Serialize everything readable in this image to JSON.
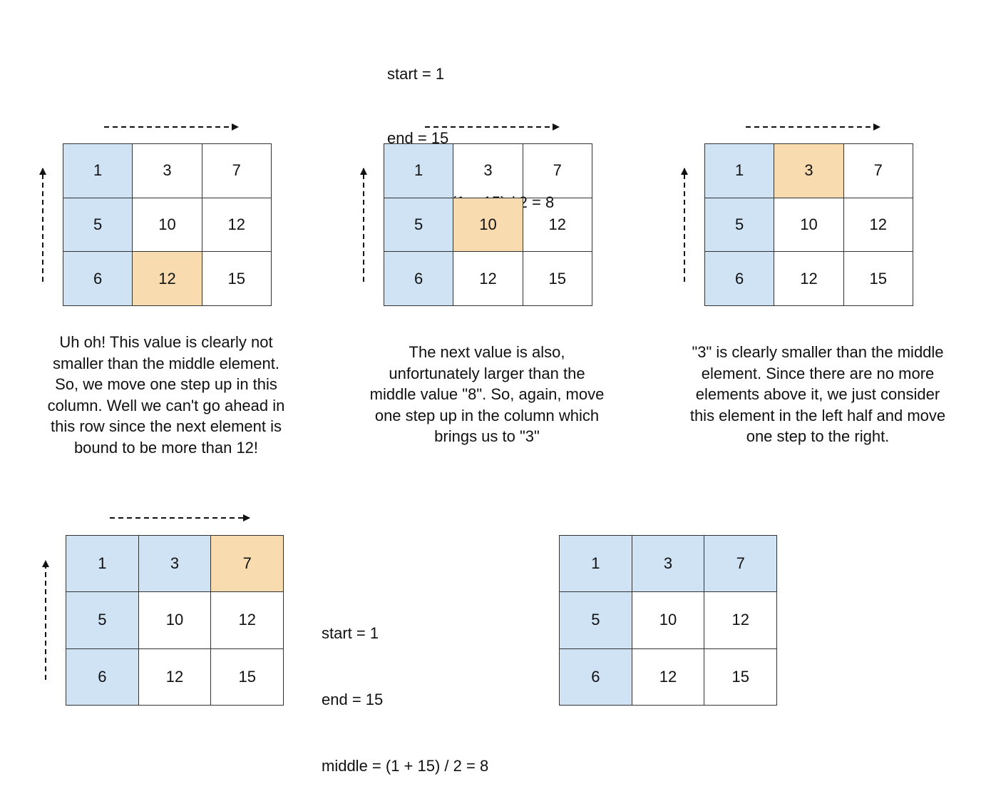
{
  "top_info": {
    "lines": [
      "start = 1",
      "end = 15",
      "middle = (1 + 15) / 2 = 8"
    ]
  },
  "mid_info": {
    "lines": [
      "start = 1",
      "end = 15",
      "middle = (1 + 15) / 2 = 8"
    ]
  },
  "colors": {
    "counted": "#cfe3f4",
    "current": "#f8dcaf",
    "border": "#333333"
  },
  "matrices": [
    {
      "rows": [
        [
          "1",
          "3",
          "7"
        ],
        [
          "5",
          "10",
          "12"
        ],
        [
          "6",
          "12",
          "15"
        ]
      ],
      "states": [
        [
          "in",
          "",
          ""
        ],
        [
          "in",
          "",
          ""
        ],
        [
          "in",
          "mark",
          ""
        ]
      ]
    },
    {
      "rows": [
        [
          "1",
          "3",
          "7"
        ],
        [
          "5",
          "10",
          "12"
        ],
        [
          "6",
          "12",
          "15"
        ]
      ],
      "states": [
        [
          "in",
          "",
          ""
        ],
        [
          "in",
          "mark",
          ""
        ],
        [
          "in",
          "",
          ""
        ]
      ]
    },
    {
      "rows": [
        [
          "1",
          "3",
          "7"
        ],
        [
          "5",
          "10",
          "12"
        ],
        [
          "6",
          "12",
          "15"
        ]
      ],
      "states": [
        [
          "in",
          "mark",
          ""
        ],
        [
          "in",
          "",
          ""
        ],
        [
          "in",
          "",
          ""
        ]
      ]
    },
    {
      "rows": [
        [
          "1",
          "3",
          "7"
        ],
        [
          "5",
          "10",
          "12"
        ],
        [
          "6",
          "12",
          "15"
        ]
      ],
      "states": [
        [
          "in",
          "in",
          "mark"
        ],
        [
          "in",
          "",
          ""
        ],
        [
          "in",
          "",
          ""
        ]
      ]
    },
    {
      "rows": [
        [
          "1",
          "3",
          "7"
        ],
        [
          "5",
          "10",
          "12"
        ],
        [
          "6",
          "12",
          "15"
        ]
      ],
      "states": [
        [
          "in",
          "in",
          "in"
        ],
        [
          "in",
          "",
          ""
        ],
        [
          "in",
          "",
          ""
        ]
      ]
    }
  ],
  "captions": [
    "Uh oh! This value is clearly not\nsmaller than the middle element.\nSo, we move one step up in this\ncolumn. Well we can't go ahead in\nthis row since the next element is\nbound to be more than 12!",
    "The next value is also,\nunfortunately larger than the\nmiddle value \"8\". So, again, move\none step up in the column which\nbrings us to \"3\"",
    "\"3\" is clearly smaller than the middle\nelement. Since there are no more\nelements above it, we just consider\nthis element in the left half and move\none step to the right."
  ]
}
